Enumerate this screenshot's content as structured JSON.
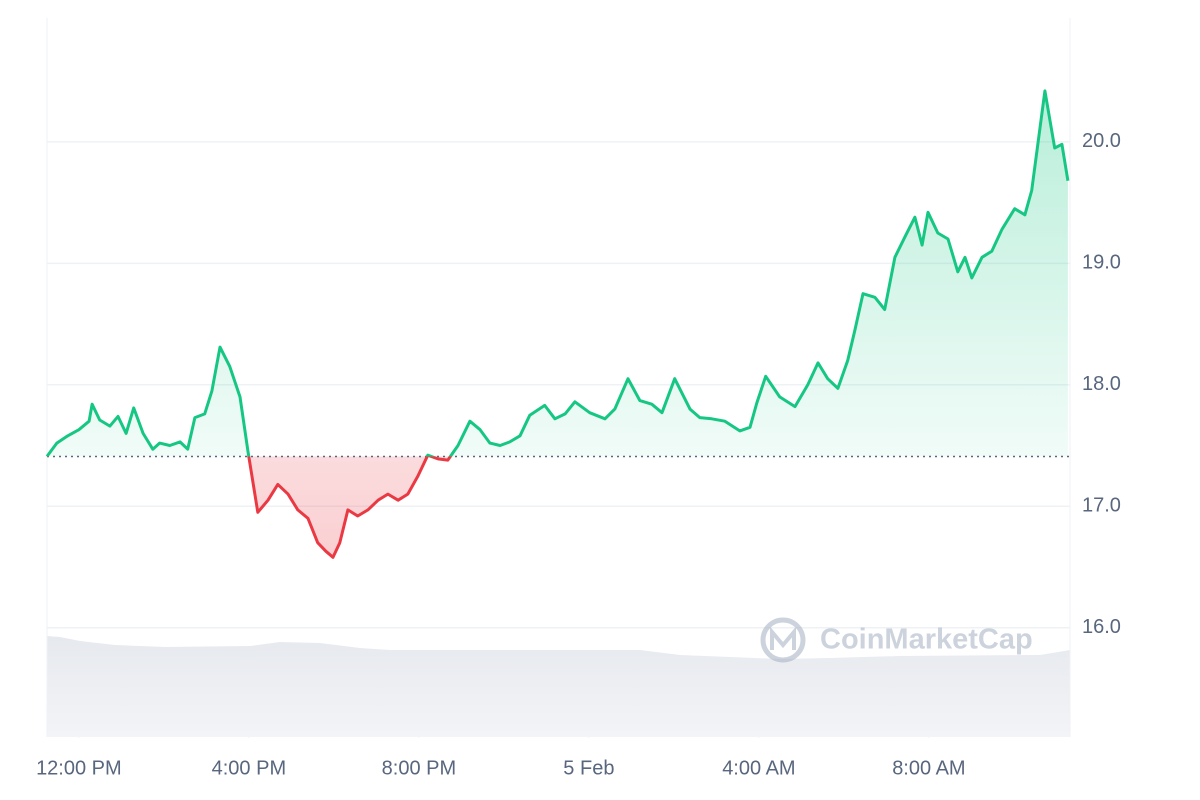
{
  "chart_data": {
    "type": "line",
    "x": [
      -0.75,
      -0.52,
      -0.26,
      0,
      0.24,
      0.31,
      0.49,
      0.73,
      0.92,
      1.11,
      1.29,
      1.51,
      1.74,
      1.9,
      2.14,
      2.38,
      2.56,
      2.73,
      2.96,
      3.13,
      3.32,
      3.55,
      3.79,
      3.98,
      4.21,
      4.45,
      4.68,
      4.92,
      5.15,
      5.39,
      5.62,
      5.81,
      5.98,
      6.14,
      6.33,
      6.56,
      6.8,
      7.04,
      7.27,
      7.51,
      7.74,
      7.98,
      8.21,
      8.45,
      8.68,
      8.92,
      9.2,
      9.44,
      9.67,
      9.91,
      10.14,
      10.38,
      10.61,
      10.96,
      11.2,
      11.44,
      11.67,
      12.02,
      12.38,
      12.61,
      12.92,
      13.2,
      13.48,
      13.72,
      14.02,
      14.38,
      14.61,
      14.89,
      15.2,
      15.55,
      15.79,
      15.95,
      16.16,
      16.49,
      16.85,
      17.15,
      17.39,
      17.62,
      17.86,
      18.09,
      18.26,
      18.45,
      18.73,
      18.96,
      19.2,
      19.44,
      19.67,
      19.84,
      19.98,
      20.21,
      20.45,
      20.68,
      20.85,
      21.01,
      21.25,
      21.48,
      21.72,
      22.02,
      22.26,
      22.42,
      22.73,
      22.96,
      23.13,
      23.27
    ],
    "series": [
      {
        "values": [
          17.41,
          17.52,
          17.58,
          17.63,
          17.7,
          17.84,
          17.71,
          17.66,
          17.74,
          17.6,
          17.81,
          17.6,
          17.47,
          17.52,
          17.5,
          17.53,
          17.47,
          17.73,
          17.76,
          17.95,
          18.31,
          18.15,
          17.9,
          17.45,
          16.95,
          17.05,
          17.18,
          17.1,
          16.97,
          16.9,
          16.7,
          16.63,
          16.58,
          16.7,
          16.97,
          16.92,
          16.97,
          17.05,
          17.1,
          17.05,
          17.1,
          17.25,
          17.42,
          17.39,
          17.38,
          17.5,
          17.7,
          17.63,
          17.52,
          17.5,
          17.53,
          17.58,
          17.75,
          17.83,
          17.72,
          17.76,
          17.86,
          17.77,
          17.72,
          17.8,
          18.05,
          17.87,
          17.84,
          17.77,
          18.05,
          17.8,
          17.73,
          17.72,
          17.7,
          17.62,
          17.65,
          17.85,
          18.07,
          17.9,
          17.82,
          18.0,
          18.18,
          18.05,
          17.97,
          18.2,
          18.45,
          18.75,
          18.72,
          18.62,
          19.05,
          19.22,
          19.38,
          19.15,
          19.42,
          19.25,
          19.2,
          18.93,
          19.05,
          18.88,
          19.05,
          19.1,
          19.28,
          19.45,
          19.4,
          19.6,
          20.42,
          19.95,
          19.98,
          19.68
        ]
      }
    ],
    "baseline": 17.41,
    "up_color": "#16c784",
    "down_color": "#ea3943",
    "xlim": [
      -0.75,
      23.32
    ],
    "xticks": [
      {
        "value": 0,
        "label": "12:00 PM"
      },
      {
        "value": 4,
        "label": "4:00 PM"
      },
      {
        "value": 8,
        "label": "8:00 PM"
      },
      {
        "value": 12,
        "label": "5 Feb"
      },
      {
        "value": 16,
        "label": "4:00 AM"
      },
      {
        "value": 20,
        "label": "8:00 AM"
      }
    ],
    "ylim": [
      15.1,
      21.02
    ],
    "yticks": [
      {
        "value": 16,
        "label": "16.0"
      },
      {
        "value": 17,
        "label": "17.0"
      },
      {
        "value": 18,
        "label": "18.0"
      },
      {
        "value": 19,
        "label": "19.0"
      },
      {
        "value": 20,
        "label": "20.0"
      }
    ],
    "grid": true,
    "watermark": "CoinMarketCap"
  }
}
